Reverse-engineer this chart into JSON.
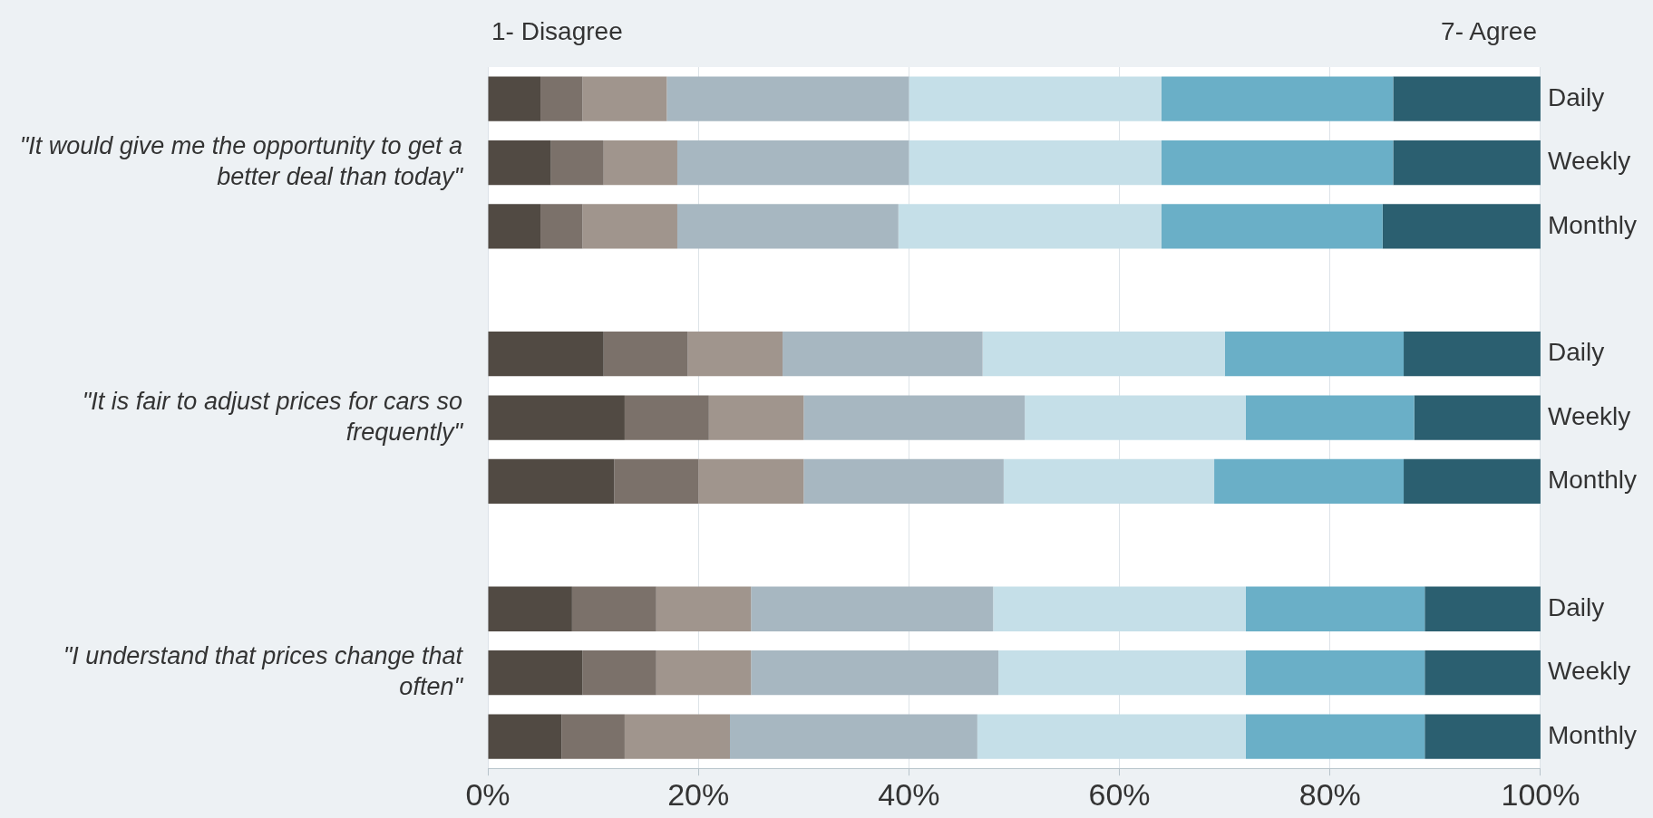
{
  "chart_data": {
    "type": "bar",
    "orientation": "horizontal",
    "stacked": true,
    "categories": [
      "Daily",
      "Weekly",
      "Monthly",
      null,
      "Daily",
      "Weekly",
      "Monthly",
      null,
      "Daily",
      "Weekly",
      "Monthly"
    ],
    "series": [
      {
        "color": "#514a43",
        "values": [
          5,
          6,
          5,
          null,
          11,
          13,
          12,
          null,
          8,
          9,
          7
        ]
      },
      {
        "color": "#7b716a",
        "values": [
          4,
          5,
          4,
          null,
          8,
          8,
          8,
          null,
          8,
          7,
          6
        ]
      },
      {
        "color": "#a0958d",
        "values": [
          8,
          7,
          9,
          null,
          9,
          9,
          10,
          null,
          9,
          9,
          10
        ]
      },
      {
        "color": "#a7b7c1",
        "values": [
          23,
          22,
          21,
          null,
          19,
          21,
          19,
          null,
          23,
          23.5,
          23.5
        ]
      },
      {
        "color": "#c5dfe8",
        "values": [
          24,
          24,
          25,
          null,
          23,
          21,
          20,
          null,
          24,
          23.5,
          25.5
        ]
      },
      {
        "color": "#6aafc7",
        "values": [
          22,
          22,
          21,
          null,
          17,
          16,
          18,
          null,
          17,
          17,
          17
        ]
      },
      {
        "color": "#2b5f70",
        "values": [
          14,
          14,
          15,
          null,
          13,
          12,
          13,
          null,
          11,
          11,
          11
        ]
      }
    ],
    "xlim": [
      0,
      100
    ],
    "xticks": [
      {
        "value": 0,
        "label": "0%"
      },
      {
        "value": 20,
        "label": "20%"
      },
      {
        "value": 40,
        "label": "40%"
      },
      {
        "value": 60,
        "label": "60%"
      },
      {
        "value": 80,
        "label": "80%"
      },
      {
        "value": 100,
        "label": "100%"
      }
    ],
    "grid": "x",
    "legend": false,
    "annotations": [
      "1- Disagree",
      "7- Agree",
      "\"It would give me the opportunity to get a better deal than today\"",
      "\"It is fair to adjust prices for cars so frequently\"",
      "\"I understand that prices change that often\""
    ]
  }
}
